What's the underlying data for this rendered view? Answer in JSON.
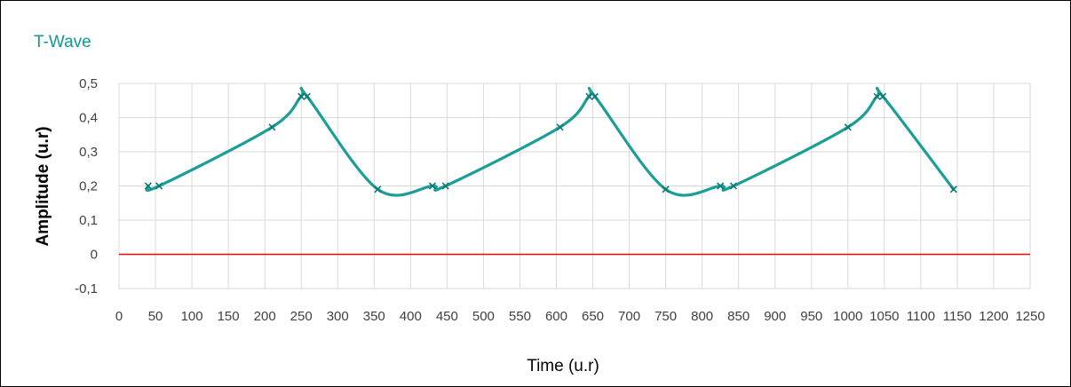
{
  "chart_data": {
    "type": "line",
    "title": "T-Wave",
    "xlabel": "Time (u.r)",
    "ylabel": "Amplitude (u.r)",
    "xlim": [
      0,
      1250
    ],
    "ylim": [
      -0.1,
      0.5
    ],
    "x_ticks": [
      "0",
      "50",
      "100",
      "150",
      "200",
      "250",
      "300",
      "350",
      "400",
      "450",
      "500",
      "550",
      "600",
      "650",
      "700",
      "750",
      "800",
      "850",
      "900",
      "950",
      "1000",
      "1050",
      "1100",
      "1150",
      "1200",
      "1250"
    ],
    "y_ticks": [
      "-0,1",
      "0",
      "0,1",
      "0,2",
      "0,3",
      "0,4",
      "0,5"
    ],
    "grid": true,
    "legend": "none",
    "smooth": true,
    "series": [
      {
        "color": "#1a9e96",
        "marker": "x",
        "x": [
          40,
          55,
          210,
          250,
          258,
          355,
          430,
          448,
          605,
          645,
          653,
          750,
          825,
          843,
          1000,
          1040,
          1048,
          1145
        ],
        "y": [
          0.2,
          0.2,
          0.372,
          0.462,
          0.462,
          0.19,
          0.2,
          0.2,
          0.372,
          0.462,
          0.462,
          0.19,
          0.2,
          0.2,
          0.372,
          0.462,
          0.462,
          0.19
        ]
      }
    ],
    "reference_line": {
      "y": 0,
      "color": "#ff0000"
    }
  }
}
